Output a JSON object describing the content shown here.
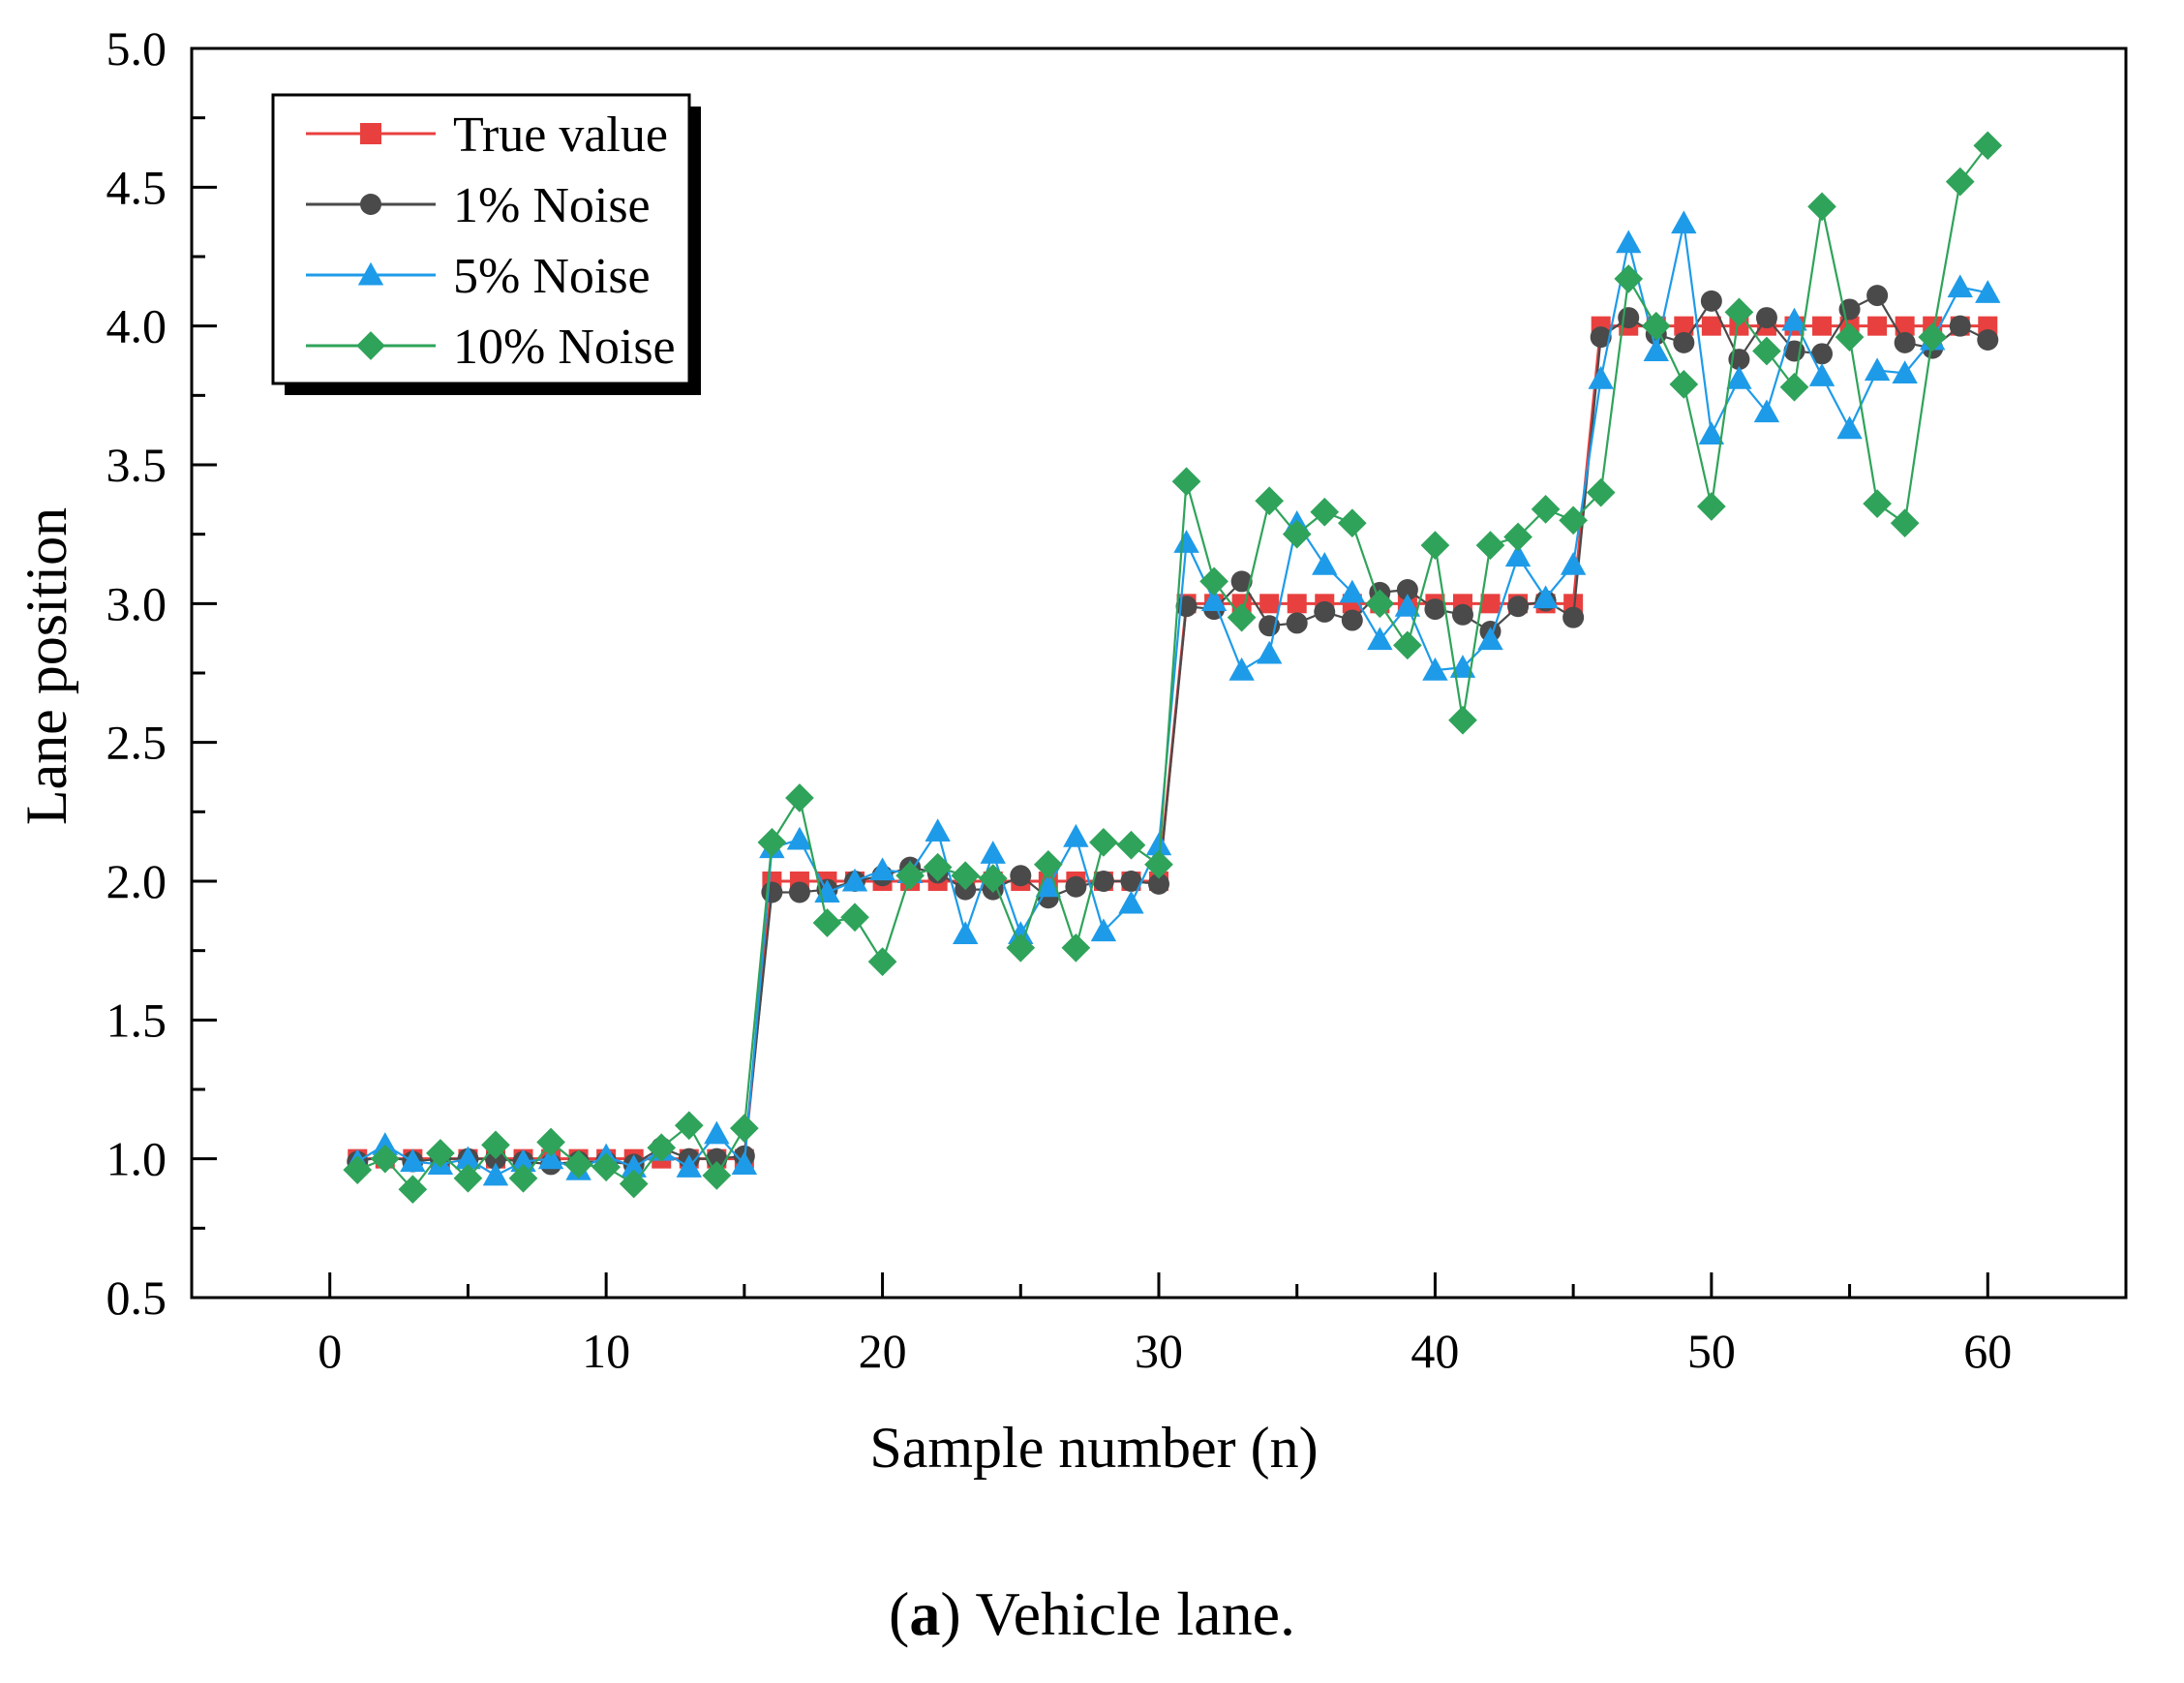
{
  "chart_data": {
    "type": "line",
    "xlabel": "Sample number (n)",
    "ylabel": "Lane position",
    "xlim": [
      -5,
      65
    ],
    "ylim": [
      0.5,
      5.0
    ],
    "x_ticks": [
      "0",
      "10",
      "20",
      "30",
      "40",
      "50",
      "60"
    ],
    "y_ticks": [
      "0.5",
      "1.0",
      "1.5",
      "2.0",
      "2.5",
      "3.0",
      "3.5",
      "4.0",
      "4.5",
      "5.0"
    ],
    "legend_position": "top-left",
    "x": [
      1,
      2,
      3,
      4,
      5,
      6,
      7,
      8,
      9,
      10,
      11,
      12,
      13,
      14,
      15,
      16,
      17,
      18,
      19,
      20,
      21,
      22,
      23,
      24,
      25,
      26,
      27,
      28,
      29,
      30,
      31,
      32,
      33,
      34,
      35,
      36,
      37,
      38,
      39,
      40,
      41,
      42,
      43,
      44,
      45,
      46,
      47,
      48,
      49,
      50,
      51,
      52,
      53,
      54,
      55,
      56,
      57,
      58,
      59,
      60
    ],
    "series": [
      {
        "name": "True value",
        "color": "#e8403f",
        "marker": "square",
        "values": [
          1,
          1,
          1,
          1,
          1,
          1,
          1,
          1,
          1,
          1,
          1,
          1,
          1,
          1,
          1,
          2,
          2,
          2,
          2,
          2,
          2,
          2,
          2,
          2,
          2,
          2,
          2,
          2,
          2,
          2,
          3,
          3,
          3,
          3,
          3,
          3,
          3,
          3,
          3,
          3,
          3,
          3,
          3,
          3,
          3,
          4,
          4,
          4,
          4,
          4,
          4,
          4,
          4,
          4,
          4,
          4,
          4,
          4,
          4,
          4
        ]
      },
      {
        "name": "1% Noise",
        "color": "#4a4a4a",
        "marker": "circle",
        "values": [
          0.99,
          1.01,
          0.99,
          1.0,
          1.0,
          1.0,
          0.99,
          0.98,
          0.99,
          0.99,
          0.98,
          1.04,
          1.0,
          1.0,
          1.01,
          1.96,
          1.96,
          1.97,
          2.0,
          2.02,
          2.05,
          2.03,
          1.97,
          1.97,
          2.02,
          1.94,
          1.98,
          2.0,
          2.0,
          1.99,
          2.99,
          2.98,
          3.08,
          2.92,
          2.93,
          2.97,
          2.94,
          3.04,
          3.05,
          2.98,
          2.96,
          2.9,
          2.99,
          3.01,
          2.95,
          3.96,
          4.03,
          3.97,
          3.94,
          4.09,
          3.88,
          4.03,
          3.91,
          3.9,
          4.06,
          4.11,
          3.94,
          3.92,
          4.0,
          3.95
        ]
      },
      {
        "name": "5% Noise",
        "color": "#1e9be8",
        "marker": "triangle",
        "values": [
          0.99,
          1.05,
          0.99,
          0.98,
          1.0,
          0.94,
          0.99,
          1.0,
          0.96,
          1.01,
          0.97,
          1.03,
          0.97,
          1.09,
          0.98,
          2.12,
          2.15,
          1.96,
          2.0,
          2.04,
          2.03,
          2.18,
          1.81,
          2.1,
          1.81,
          1.98,
          2.16,
          1.82,
          1.92,
          2.13,
          3.22,
          3.01,
          2.76,
          2.82,
          3.29,
          3.14,
          3.04,
          2.87,
          2.99,
          2.76,
          2.77,
          2.87,
          3.17,
          3.02,
          3.14,
          3.81,
          4.3,
          3.91,
          4.37,
          3.61,
          3.81,
          3.69,
          4.02,
          3.82,
          3.63,
          3.84,
          3.83,
          3.95,
          4.14,
          4.12
        ]
      },
      {
        "name": "10% Noise",
        "color": "#2fa35a",
        "marker": "diamond",
        "values": [
          0.96,
          1.0,
          0.89,
          1.02,
          0.93,
          1.05,
          0.93,
          1.06,
          0.98,
          0.97,
          0.91,
          1.04,
          1.12,
          0.94,
          1.11,
          2.14,
          2.3,
          1.85,
          1.87,
          1.71,
          2.02,
          2.05,
          2.02,
          2.01,
          1.76,
          2.06,
          1.76,
          2.14,
          2.13,
          2.06,
          3.44,
          3.08,
          2.95,
          3.37,
          3.25,
          3.33,
          3.29,
          3.0,
          2.85,
          3.21,
          2.58,
          3.21,
          3.24,
          3.34,
          3.3,
          3.4,
          4.17,
          4.0,
          3.79,
          3.35,
          4.05,
          3.91,
          3.78,
          4.43,
          3.96,
          3.36,
          3.29,
          3.96,
          4.52,
          4.65
        ]
      }
    ]
  },
  "caption": {
    "label": "a",
    "text": ") Vehicle lane."
  }
}
